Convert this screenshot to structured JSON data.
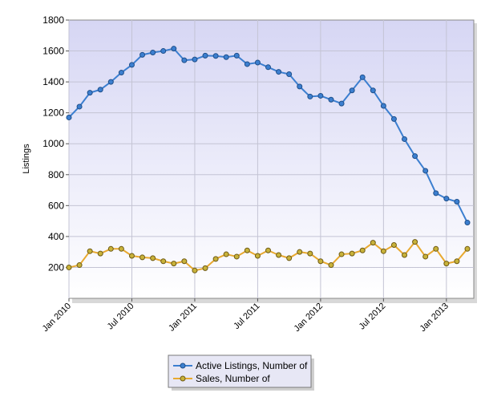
{
  "chart_data": {
    "type": "line",
    "ylabel": "Listings",
    "xlabel": "",
    "ylim": [
      0,
      1800
    ],
    "yticks": [
      200,
      400,
      600,
      800,
      1000,
      1200,
      1400,
      1600,
      1800
    ],
    "xtick_labels": [
      "Jan 2010",
      "Jul 2010",
      "Jan 2011",
      "Jul 2011",
      "Jan 2012",
      "Jul 2012",
      "Jan 2013"
    ],
    "grid": true,
    "legend_position": "bottom-center",
    "x": [
      "2010-01",
      "2010-02",
      "2010-03",
      "2010-04",
      "2010-05",
      "2010-06",
      "2010-07",
      "2010-08",
      "2010-09",
      "2010-10",
      "2010-11",
      "2010-12",
      "2011-01",
      "2011-02",
      "2011-03",
      "2011-04",
      "2011-05",
      "2011-06",
      "2011-07",
      "2011-08",
      "2011-09",
      "2011-10",
      "2011-11",
      "2011-12",
      "2012-01",
      "2012-02",
      "2012-03",
      "2012-04",
      "2012-05",
      "2012-06",
      "2012-07",
      "2012-08",
      "2012-09",
      "2012-10",
      "2012-11",
      "2012-12",
      "2013-01",
      "2013-02",
      "2013-03"
    ],
    "series": [
      {
        "name": "Active Listings, Number of",
        "color": "#3c7fd0",
        "values": [
          1170,
          1240,
          1330,
          1350,
          1400,
          1460,
          1510,
          1575,
          1590,
          1600,
          1615,
          1540,
          1545,
          1570,
          1568,
          1560,
          1570,
          1515,
          1525,
          1495,
          1465,
          1450,
          1370,
          1305,
          1310,
          1285,
          1260,
          1345,
          1430,
          1345,
          1245,
          1160,
          1030,
          920,
          825,
          680,
          645,
          625,
          490
        ]
      },
      {
        "name": "Sales, Number of",
        "color": "#e8a930",
        "values": [
          200,
          215,
          305,
          290,
          320,
          320,
          275,
          265,
          260,
          240,
          225,
          240,
          180,
          195,
          255,
          285,
          270,
          310,
          275,
          310,
          280,
          260,
          300,
          290,
          240,
          215,
          285,
          290,
          310,
          360,
          305,
          345,
          280,
          365,
          270,
          320,
          225,
          240,
          320
        ]
      }
    ]
  }
}
